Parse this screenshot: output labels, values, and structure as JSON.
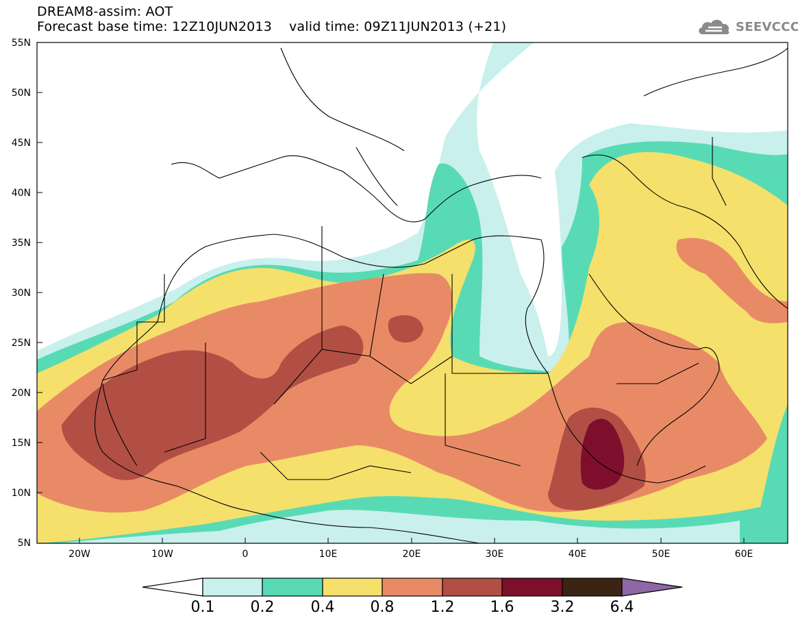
{
  "header": {
    "line1": "DREAM8-assim: AOT",
    "line2_base": "Forecast base time: 12Z10JUN2013",
    "line2_valid": "valid time: 09Z11JUN2013 (+21)"
  },
  "logo": {
    "text": "SEEVCCC",
    "icon": "cloud-icon"
  },
  "axes": {
    "lat_labels": [
      "55N",
      "50N",
      "45N",
      "40N",
      "35N",
      "30N",
      "25N",
      "20N",
      "15N",
      "10N",
      "5N"
    ],
    "lon_labels": [
      "20W",
      "10W",
      "0",
      "10E",
      "20E",
      "30E",
      "40E",
      "50E",
      "60E"
    ]
  },
  "colorbar": {
    "labels": [
      "0.1",
      "0.2",
      "0.4",
      "0.8",
      "1.2",
      "1.6",
      "3.2",
      "6.4"
    ],
    "colors": [
      "#ffffff",
      "#c9f0ec",
      "#58dbb4",
      "#f5e06c",
      "#e98a66",
      "#b24f44",
      "#7e0f2c",
      "#3c2414",
      "#8e67a6"
    ]
  },
  "map_colors": {
    "c01": "#c9f0ec",
    "c02": "#58dbb4",
    "c04": "#f5e06c",
    "c08": "#e98a66",
    "c12": "#b24f44",
    "c16": "#7e0f2c",
    "coast": "#000000"
  }
}
